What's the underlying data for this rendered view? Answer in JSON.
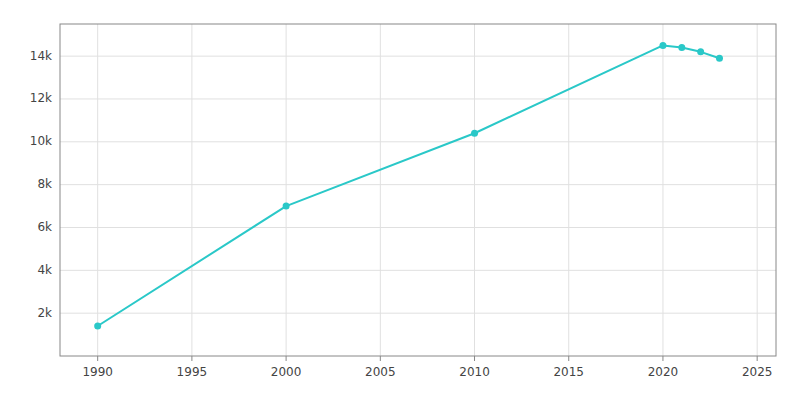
{
  "chart_data": {
    "type": "line",
    "x": [
      1990,
      2000,
      2010,
      2020,
      2021,
      2022,
      2023
    ],
    "values": [
      1400,
      7000,
      10400,
      14500,
      14400,
      14200,
      13900
    ],
    "color": "#2ac8c8",
    "marker": "circle",
    "xlim": [
      1988,
      2026
    ],
    "ylim": [
      0,
      15500
    ],
    "xticks": [
      1990,
      1995,
      2000,
      2005,
      2010,
      2015,
      2020,
      2025
    ],
    "yticks": [
      {
        "value": 2000,
        "label": "2k"
      },
      {
        "value": 4000,
        "label": "4k"
      },
      {
        "value": 6000,
        "label": "6k"
      },
      {
        "value": 8000,
        "label": "8k"
      },
      {
        "value": 10000,
        "label": "10k"
      },
      {
        "value": 12000,
        "label": "12k"
      },
      {
        "value": 14000,
        "label": "14k"
      }
    ],
    "grid": true
  }
}
